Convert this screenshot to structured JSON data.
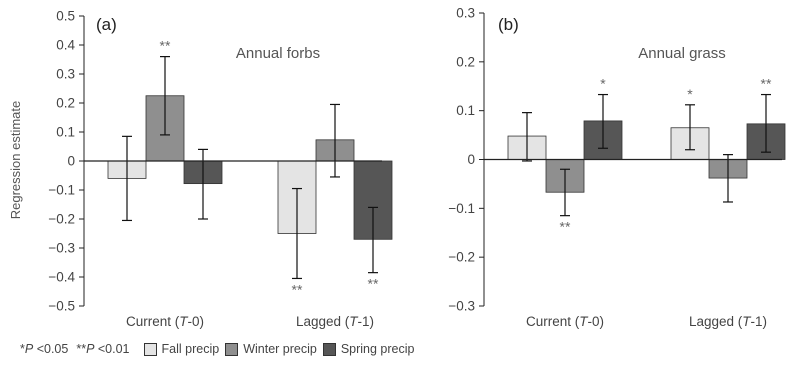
{
  "colors": {
    "fall": "#e4e4e4",
    "winter": "#8f8f8f",
    "spring": "#565656",
    "text": "#4a4a4a",
    "axis": "#222222"
  },
  "ylabel": "Regression estimate",
  "legend": {
    "sig_p05_label": "*P <0.05",
    "sig_p01_label": "**P <0.01",
    "series": [
      "Fall precip",
      "Winter precip",
      "Spring precip"
    ]
  },
  "chart_data": [
    {
      "type": "bar",
      "panel_label": "(a)",
      "title": "Annual forbs",
      "ylabel": "Regression estimate",
      "ylim": [
        -0.5,
        0.5
      ],
      "yticks": [
        "0.5",
        "0.4",
        "0.3",
        "0.2",
        "0.1",
        "0",
        "−0.1",
        "−0.2",
        "−0.3",
        "−0.4",
        "−0.5"
      ],
      "ytick_values": [
        0.5,
        0.4,
        0.3,
        0.2,
        0.1,
        0,
        -0.1,
        -0.2,
        -0.3,
        -0.4,
        -0.5
      ],
      "categories": [
        "Current (T-0)",
        "Lagged (T-1)"
      ],
      "category_parts": [
        [
          "Current (",
          "T",
          "-0)"
        ],
        [
          "Lagged (",
          "T",
          "-1)"
        ]
      ],
      "series": [
        {
          "name": "Fall precip",
          "values": [
            -0.06,
            -0.25
          ],
          "err_low": [
            -0.205,
            -0.405
          ],
          "err_high": [
            0.085,
            -0.095
          ],
          "sig": [
            "",
            "**"
          ]
        },
        {
          "name": "Winter precip",
          "values": [
            0.225,
            0.073
          ],
          "err_low": [
            0.09,
            -0.055
          ],
          "err_high": [
            0.36,
            0.195
          ],
          "sig": [
            "**",
            ""
          ]
        },
        {
          "name": "Spring precip",
          "values": [
            -0.078,
            -0.27
          ],
          "err_low": [
            -0.2,
            -0.385
          ],
          "err_high": [
            0.04,
            -0.16
          ],
          "sig": [
            "",
            "**"
          ]
        }
      ]
    },
    {
      "type": "bar",
      "panel_label": "(b)",
      "title": "Annual grass",
      "ylabel": "",
      "ylim": [
        -0.3,
        0.3
      ],
      "yticks": [
        "0.3",
        "0.2",
        "0.1",
        "0",
        "−0.1",
        "−0.2",
        "−0.3"
      ],
      "ytick_values": [
        0.3,
        0.2,
        0.1,
        0,
        -0.1,
        -0.2,
        -0.3
      ],
      "categories": [
        "Current (T-0)",
        "Lagged (T-1)"
      ],
      "category_parts": [
        [
          "Current (",
          "T",
          "-0)"
        ],
        [
          "Lagged (",
          "T",
          "-1)"
        ]
      ],
      "series": [
        {
          "name": "Fall precip",
          "values": [
            0.048,
            0.065
          ],
          "err_low": [
            -0.003,
            0.02
          ],
          "err_high": [
            0.096,
            0.112
          ],
          "sig": [
            "",
            "*"
          ]
        },
        {
          "name": "Winter precip",
          "values": [
            -0.067,
            -0.038
          ],
          "err_low": [
            -0.115,
            -0.087
          ],
          "err_high": [
            -0.02,
            0.01
          ],
          "sig": [
            "**",
            ""
          ]
        },
        {
          "name": "Spring precip",
          "values": [
            0.079,
            0.073
          ],
          "err_low": [
            0.023,
            0.015
          ],
          "err_high": [
            0.133,
            0.133
          ],
          "sig": [
            "*",
            "**"
          ]
        }
      ]
    }
  ]
}
